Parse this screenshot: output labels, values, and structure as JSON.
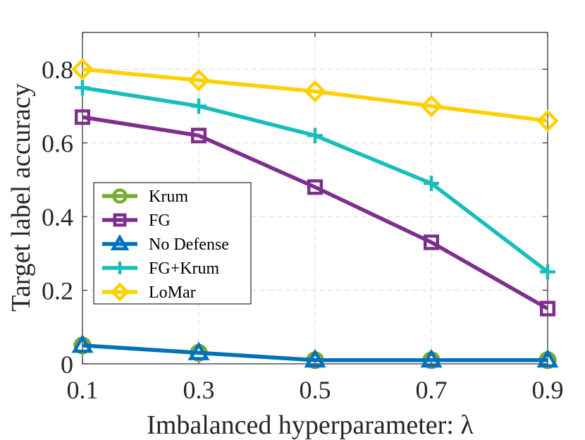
{
  "chart_data": {
    "type": "line",
    "title": "",
    "xlabel": "Imbalanced hyperparameter: λ",
    "ylabel": "Target label accuracy",
    "x": [
      0.1,
      0.3,
      0.5,
      0.7,
      0.9
    ],
    "x_tick_labels": [
      "0.1",
      "0.3",
      "0.5",
      "0.7",
      "0.9"
    ],
    "y_ticks": [
      0,
      0.2,
      0.4,
      0.6,
      0.8
    ],
    "y_tick_labels": [
      "0",
      "0.2",
      "0.4",
      "0.6",
      "0.8"
    ],
    "xlim": [
      0.1,
      0.9
    ],
    "ylim": [
      0,
      0.9
    ],
    "grid": true,
    "legend_position": "center-left",
    "series": [
      {
        "name": "Krum",
        "color": "#77AC30",
        "marker": "circle",
        "values": [
          0.05,
          0.03,
          0.01,
          0.01,
          0.01
        ]
      },
      {
        "name": "FG",
        "color": "#7E2F8E",
        "marker": "square",
        "values": [
          0.67,
          0.62,
          0.48,
          0.33,
          0.15
        ]
      },
      {
        "name": "No Defense",
        "color": "#0072BD",
        "marker": "triangle",
        "values": [
          0.05,
          0.03,
          0.01,
          0.01,
          0.01
        ]
      },
      {
        "name": "FG+Krum",
        "color": "#17BEBB",
        "marker": "plus",
        "values": [
          0.75,
          0.7,
          0.62,
          0.49,
          0.25
        ]
      },
      {
        "name": "LoMar",
        "color": "#FFD000",
        "marker": "diamond",
        "values": [
          0.8,
          0.77,
          0.74,
          0.7,
          0.66
        ]
      }
    ]
  }
}
